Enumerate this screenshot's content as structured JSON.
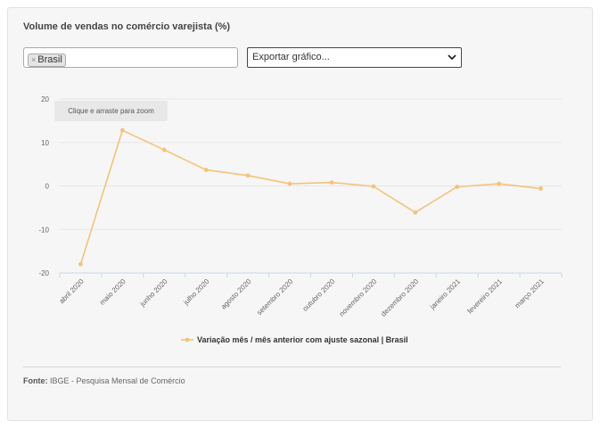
{
  "title": "Volume de vendas no comércio varejista (%)",
  "filter": {
    "chip_label": "Brasil",
    "remove_symbol": "×"
  },
  "export": {
    "label": "Exportar gráfico..."
  },
  "zoom_hint": "Clique e arraste para zoom",
  "source": {
    "label": "Fonte:",
    "text": "IBGE - Pesquisa Mensal de Comércio"
  },
  "colors": {
    "series": "#f5c27a",
    "grid": "#e6e6e6",
    "axis": "#ccd6eb"
  },
  "chart_data": {
    "type": "line",
    "title": "Volume de vendas no comércio varejista (%)",
    "xlabel": "",
    "ylabel": "",
    "ylim": [
      -20,
      20
    ],
    "yticks": [
      -20,
      -10,
      0,
      10,
      20
    ],
    "ytick_labels": [
      "-20",
      "-10",
      "0",
      "10",
      "20"
    ],
    "grid": true,
    "legend": "bottom-center",
    "categories": [
      "abril 2020",
      "maio 2020",
      "junho 2020",
      "julho 2020",
      "agosto 2020",
      "setembro 2020",
      "outubro 2020",
      "novembro 2020",
      "dezembro 2020",
      "janeiro 2021",
      "fevereiro 2021",
      "março 2021"
    ],
    "series": [
      {
        "name": "Variação mês / mês anterior com ajuste sazonal | Brasil",
        "values": [
          -18.0,
          12.8,
          8.3,
          3.7,
          2.4,
          0.5,
          0.8,
          -0.1,
          -6.1,
          -0.2,
          0.5,
          -0.6
        ]
      }
    ]
  }
}
